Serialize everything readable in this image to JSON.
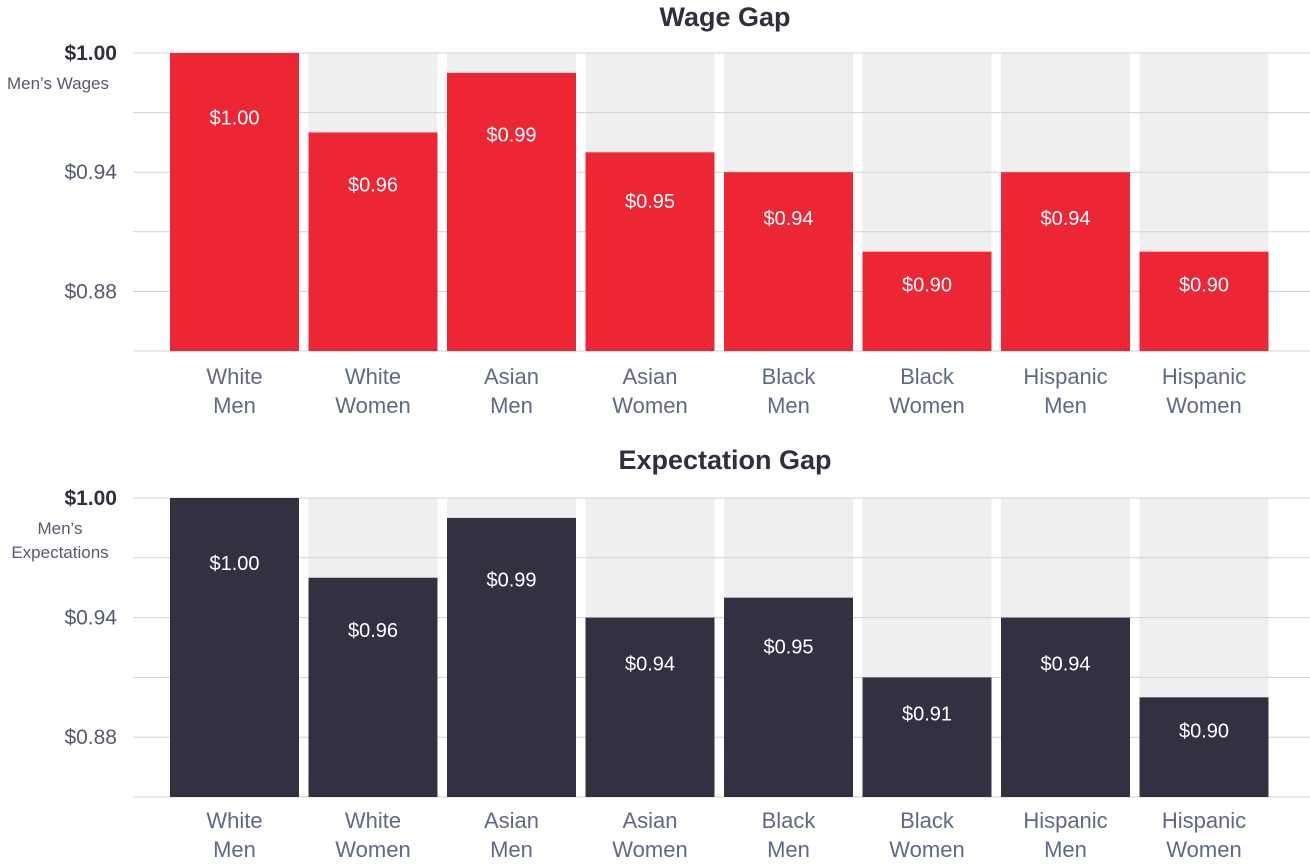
{
  "chart_data": [
    {
      "type": "bar",
      "title": "Wage Gap",
      "ylabel": "Men’s Wages",
      "categories": [
        [
          "White",
          "Men"
        ],
        [
          "White",
          "Women"
        ],
        [
          "Asian",
          "Men"
        ],
        [
          "Asian",
          "Women"
        ],
        [
          "Black",
          "Men"
        ],
        [
          "Black",
          "Women"
        ],
        [
          "Hispanic",
          "Men"
        ],
        [
          "Hispanic",
          "Women"
        ]
      ],
      "values": [
        1.0,
        0.96,
        0.99,
        0.95,
        0.94,
        0.9,
        0.94,
        0.9
      ],
      "value_labels": [
        "$1.00",
        "$0.96",
        "$0.99",
        "$0.95",
        "$0.94",
        "$0.90",
        "$0.94",
        "$0.90"
      ],
      "yticks": [
        1.0,
        0.94,
        0.88
      ],
      "ytick_labels": [
        "$1.00",
        "$0.94",
        "$0.88"
      ],
      "ylim": [
        0.85,
        1.0
      ],
      "grid": true,
      "bar_color": "#ec2634",
      "background_color": "#efefef"
    },
    {
      "type": "bar",
      "title": "Expectation Gap",
      "ylabel": "Men’s Expectations",
      "categories": [
        [
          "White",
          "Men"
        ],
        [
          "White",
          "Women"
        ],
        [
          "Asian",
          "Men"
        ],
        [
          "Asian",
          "Women"
        ],
        [
          "Black",
          "Men"
        ],
        [
          "Black",
          "Women"
        ],
        [
          "Hispanic",
          "Men"
        ],
        [
          "Hispanic",
          "Women"
        ]
      ],
      "values": [
        1.0,
        0.96,
        0.99,
        0.94,
        0.95,
        0.91,
        0.94,
        0.9
      ],
      "value_labels": [
        "$1.00",
        "$0.96",
        "$0.99",
        "$0.94",
        "$0.95",
        "$0.91",
        "$0.94",
        "$0.90"
      ],
      "yticks": [
        1.0,
        0.94,
        0.88
      ],
      "ytick_labels": [
        "$1.00",
        "$0.94",
        "$0.88"
      ],
      "ylim": [
        0.85,
        1.0
      ],
      "grid": true,
      "bar_color": "#323142",
      "background_color": "#efefef"
    }
  ]
}
